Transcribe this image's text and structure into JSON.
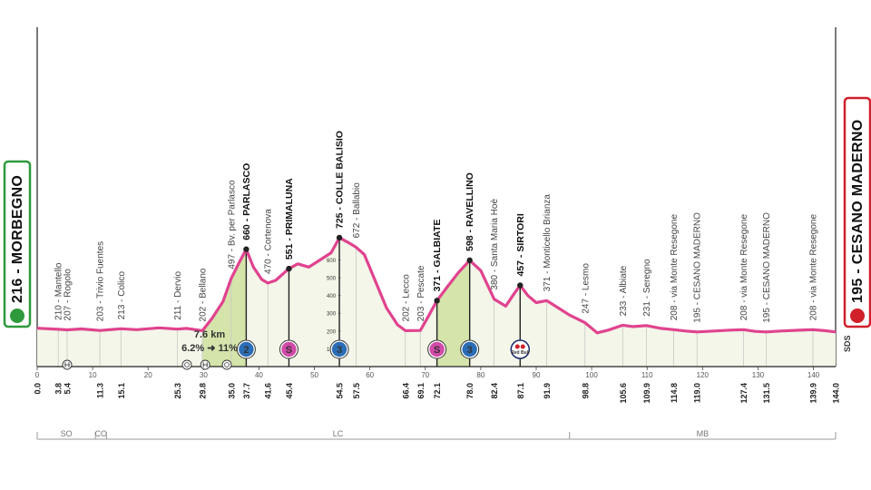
{
  "colors": {
    "profile_line": "#e0438f",
    "profile_fill": "#f3f6e8",
    "climb_fill": "#cfe0a0",
    "start_box": "#2e9a3c",
    "finish_box": "#d0202a",
    "kom2_badge": "#2b6db6",
    "kom3_badge": "#2b6db6",
    "sprint_badge": "#d24aa8"
  },
  "start": {
    "label": "216 - MORBEGNO"
  },
  "finish": {
    "label": "195 - CESANO MADERNO"
  },
  "steepness_note": {
    "distance": "7.6 km",
    "gradient": "6.2% ➜ 11%"
  },
  "sds_logo": "SDS",
  "provinces": [
    {
      "code": "SO",
      "from": 0,
      "to": 10.5
    },
    {
      "code": "CO",
      "from": 10.5,
      "to": 12.5
    },
    {
      "code": "LC",
      "from": 12.5,
      "to": 96
    },
    {
      "code": "MB",
      "from": 96,
      "to": 144
    }
  ],
  "chart_data": {
    "type": "area",
    "xlabel": "",
    "ylabel": "",
    "xlim": [
      0,
      144
    ],
    "ylim": [
      0,
      750
    ],
    "x_ticks": [
      0,
      10,
      20,
      30,
      40,
      50,
      60,
      70,
      80,
      90,
      100,
      110,
      120,
      130,
      140
    ],
    "y_ticks": [
      100,
      200,
      300,
      400,
      500,
      600
    ],
    "profile": [
      [
        0,
        216
      ],
      [
        3.8,
        210
      ],
      [
        5.4,
        207
      ],
      [
        8,
        212
      ],
      [
        11.3,
        203
      ],
      [
        15.1,
        213
      ],
      [
        18,
        208
      ],
      [
        22,
        218
      ],
      [
        25.3,
        211
      ],
      [
        27,
        215
      ],
      [
        29.8,
        202
      ],
      [
        31.5,
        270
      ],
      [
        33.5,
        365
      ],
      [
        35,
        497
      ],
      [
        36.5,
        590
      ],
      [
        37.7,
        660
      ],
      [
        39,
        560
      ],
      [
        40.5,
        490
      ],
      [
        41.6,
        470
      ],
      [
        43,
        485
      ],
      [
        45.4,
        551
      ],
      [
        47,
        578
      ],
      [
        49,
        560
      ],
      [
        51,
        600
      ],
      [
        53,
        640
      ],
      [
        54.5,
        725
      ],
      [
        56,
        700
      ],
      [
        57.5,
        672
      ],
      [
        59,
        630
      ],
      [
        61,
        480
      ],
      [
        63,
        330
      ],
      [
        65,
        235
      ],
      [
        66.4,
        202
      ],
      [
        69.1,
        203
      ],
      [
        70.5,
        280
      ],
      [
        72.1,
        371
      ],
      [
        74,
        450
      ],
      [
        76,
        530
      ],
      [
        78,
        598
      ],
      [
        80,
        540
      ],
      [
        82.4,
        380
      ],
      [
        84.5,
        340
      ],
      [
        86,
        410
      ],
      [
        87.1,
        457
      ],
      [
        88.5,
        400
      ],
      [
        90,
        360
      ],
      [
        91.9,
        371
      ],
      [
        94,
        330
      ],
      [
        96,
        290
      ],
      [
        98.8,
        247
      ],
      [
        101,
        190
      ],
      [
        103,
        205
      ],
      [
        105.6,
        233
      ],
      [
        107.5,
        225
      ],
      [
        109.9,
        231
      ],
      [
        112.5,
        215
      ],
      [
        114.8,
        208
      ],
      [
        117,
        200
      ],
      [
        119,
        195
      ],
      [
        122,
        200
      ],
      [
        125,
        205
      ],
      [
        127.4,
        208
      ],
      [
        129.5,
        198
      ],
      [
        131.5,
        195
      ],
      [
        134,
        200
      ],
      [
        137,
        204
      ],
      [
        139.9,
        208
      ],
      [
        142,
        202
      ],
      [
        144,
        195
      ]
    ],
    "climb_segments": [
      {
        "from": 29.8,
        "to": 37.7
      },
      {
        "from": 72.1,
        "to": 78.0
      }
    ],
    "places": [
      {
        "km": "3.8",
        "x": 3.8,
        "alt": 210,
        "label": "210 - Mantello",
        "bold": false
      },
      {
        "km": "5.4",
        "x": 5.4,
        "alt": 207,
        "label": "207 - Rogolo",
        "bold": false
      },
      {
        "km": "11.3",
        "x": 11.3,
        "alt": 203,
        "label": "203 - Trivio Fuentes",
        "bold": false
      },
      {
        "km": "15.1",
        "x": 15.1,
        "alt": 213,
        "label": "213 - Colico",
        "bold": false
      },
      {
        "km": "25.3",
        "x": 25.3,
        "alt": 211,
        "label": "211 - Dervio",
        "bold": false
      },
      {
        "km": "29.8",
        "x": 29.8,
        "alt": 202,
        "label": "202 - Bellano",
        "bold": false
      },
      {
        "km": "35.0",
        "x": 35.0,
        "alt": 497,
        "label": "497 - Bv. per Parlasco",
        "bold": false
      },
      {
        "km": "37.7",
        "x": 37.7,
        "alt": 660,
        "label": "660 - PARLASCO",
        "bold": true
      },
      {
        "km": "41.6",
        "x": 41.6,
        "alt": 470,
        "label": "470 - Cortenova",
        "bold": false
      },
      {
        "km": "45.4",
        "x": 45.4,
        "alt": 551,
        "label": "551 - PRIMALUNA",
        "bold": true
      },
      {
        "km": "54.5",
        "x": 54.5,
        "alt": 725,
        "label": "725 - COLLE BALISIO",
        "bold": true
      },
      {
        "km": "57.5",
        "x": 57.5,
        "alt": 672,
        "label": "672 - Ballabio",
        "bold": false
      },
      {
        "km": "66.4",
        "x": 66.4,
        "alt": 202,
        "label": "202 - Lecco",
        "bold": false
      },
      {
        "km": "69.1",
        "x": 69.1,
        "alt": 203,
        "label": "203 - Pescate",
        "bold": false
      },
      {
        "km": "72.1",
        "x": 72.1,
        "alt": 371,
        "label": "371 - GALBIATE",
        "bold": true
      },
      {
        "km": "78.0",
        "x": 78.0,
        "alt": 598,
        "label": "598 - RAVELLINO",
        "bold": true
      },
      {
        "km": "82.4",
        "x": 82.4,
        "alt": 380,
        "label": "380 - Santa Maria Hoè",
        "bold": false
      },
      {
        "km": "87.1",
        "x": 87.1,
        "alt": 457,
        "label": "457 - SIRTORI",
        "bold": true
      },
      {
        "km": "91.9",
        "x": 91.9,
        "alt": 371,
        "label": "371 - Monticello Brianza",
        "bold": false
      },
      {
        "km": "98.8",
        "x": 98.8,
        "alt": 247,
        "label": "247 - Lesmo",
        "bold": false
      },
      {
        "km": "105.6",
        "x": 105.6,
        "alt": 233,
        "label": "233 - Albiate",
        "bold": false
      },
      {
        "km": "109.9",
        "x": 109.9,
        "alt": 231,
        "label": "231 - Seregno",
        "bold": false
      },
      {
        "km": "114.8",
        "x": 114.8,
        "alt": 208,
        "label": "208 - via Monte Resegone",
        "bold": false
      },
      {
        "km": "119.0",
        "x": 119.0,
        "alt": 195,
        "label": "195 - CESANO MADERNO",
        "bold": false
      },
      {
        "km": "127.4",
        "x": 127.4,
        "alt": 208,
        "label": "208 - via Monte Resegone",
        "bold": false
      },
      {
        "km": "131.5",
        "x": 131.5,
        "alt": 195,
        "label": "195 - CESANO MADERNO",
        "bold": false
      },
      {
        "km": "139.9",
        "x": 139.9,
        "alt": 208,
        "label": "208 - via Monte Resegone",
        "bold": false
      }
    ],
    "start_km": "0.0",
    "finish_km": "144.0",
    "badges": [
      {
        "x": 37.7,
        "text": "2",
        "kind": "kom"
      },
      {
        "x": 45.4,
        "text": "S",
        "kind": "sprint"
      },
      {
        "x": 54.5,
        "text": "3",
        "kind": "kom"
      },
      {
        "x": 72.1,
        "text": "S",
        "kind": "sprint"
      },
      {
        "x": 78.0,
        "text": "3",
        "kind": "kom"
      },
      {
        "x": 87.1,
        "text": "Red Bull",
        "kind": "redbull"
      }
    ],
    "small_icons": [
      {
        "x": 5.4,
        "kind": "level-crossing"
      },
      {
        "x": 27,
        "kind": "tunnel"
      },
      {
        "x": 30.3,
        "kind": "level-crossing"
      },
      {
        "x": 34.2,
        "kind": "tunnel"
      }
    ]
  }
}
